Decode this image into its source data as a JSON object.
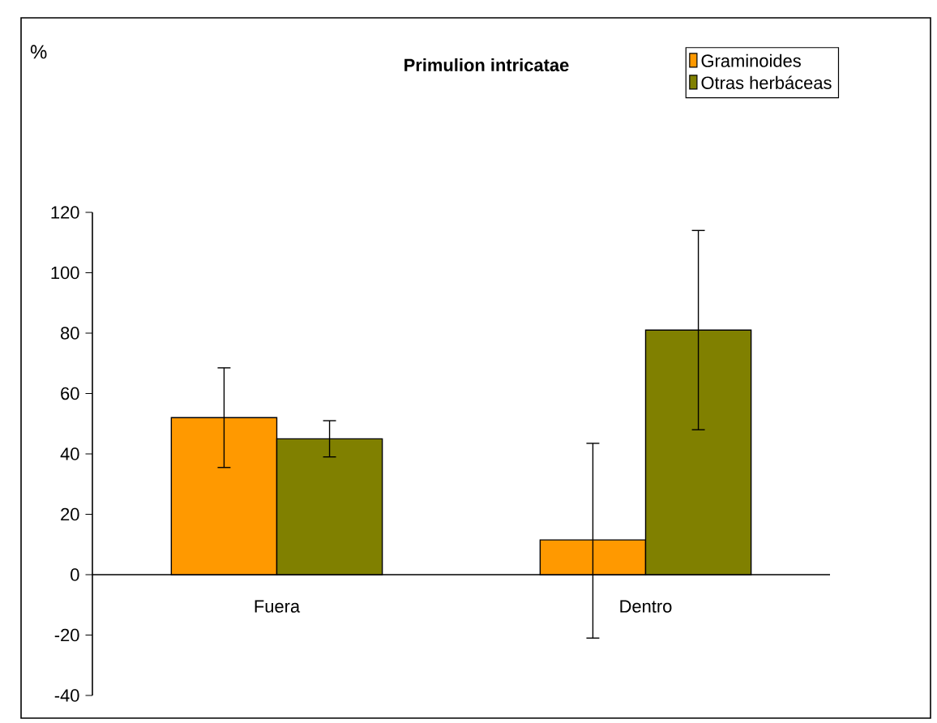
{
  "chart_data": {
    "type": "bar",
    "title": "Primulion intricatae",
    "annotations": [
      "%"
    ],
    "categories": [
      "Fuera",
      "Dentro"
    ],
    "series": [
      {
        "name": "Graminoides",
        "color": "#ff9900",
        "values": [
          52,
          11.5
        ],
        "errors": [
          [
            35.5,
            68.5
          ],
          [
            -21,
            43.5
          ]
        ]
      },
      {
        "name": "Otras herbáceas",
        "color": "#808000",
        "values": [
          45,
          81
        ],
        "errors": [
          [
            39,
            51
          ],
          [
            48,
            114
          ]
        ]
      }
    ],
    "ylim": [
      -40,
      120
    ],
    "yticks": [
      -40,
      -20,
      0,
      20,
      40,
      60,
      80,
      100,
      120
    ],
    "grid": false,
    "legend": "top right"
  }
}
